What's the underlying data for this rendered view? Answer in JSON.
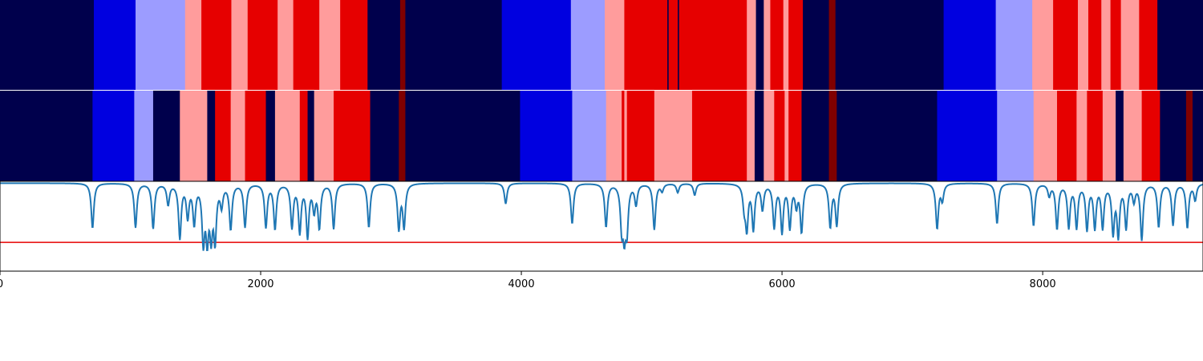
{
  "chart_data": {
    "type": "heatmap",
    "xlim": [
      0,
      9230
    ],
    "x_ticks": [
      0,
      2000,
      4000,
      6000,
      8000
    ],
    "x_tick_labels": [
      "0",
      "2000",
      "4000",
      "6000",
      "8000"
    ],
    "grid": false,
    "legend": "none",
    "colors": {
      "navy": "#00004c",
      "blue": "#0000e0",
      "lightblue": "#9c9cff",
      "pink": "#ff9c9c",
      "red": "#e60000",
      "darkred": "#800000",
      "line": "#1f77b4",
      "threshold": "#e60000"
    },
    "state_rows": [
      {
        "segments": [
          [
            0,
            720,
            "navy"
          ],
          [
            720,
            1040,
            "blue"
          ],
          [
            1040,
            1420,
            "lightblue"
          ],
          [
            1420,
            1545,
            "pink"
          ],
          [
            1545,
            1775,
            "red"
          ],
          [
            1775,
            1900,
            "pink"
          ],
          [
            1900,
            2130,
            "red"
          ],
          [
            2130,
            2250,
            "pink"
          ],
          [
            2250,
            2450,
            "red"
          ],
          [
            2450,
            2610,
            "pink"
          ],
          [
            2610,
            2820,
            "red"
          ],
          [
            2820,
            3070,
            "navy"
          ],
          [
            3070,
            3110,
            "darkred"
          ],
          [
            3110,
            3850,
            "navy"
          ],
          [
            3850,
            4380,
            "blue"
          ],
          [
            4380,
            4640,
            "lightblue"
          ],
          [
            4640,
            4790,
            "pink"
          ],
          [
            4790,
            5120,
            "red"
          ],
          [
            5120,
            5130,
            "navy"
          ],
          [
            5130,
            5200,
            "red"
          ],
          [
            5200,
            5210,
            "navy"
          ],
          [
            5210,
            5320,
            "red"
          ],
          [
            5320,
            5730,
            "red"
          ],
          [
            5730,
            5800,
            "pink"
          ],
          [
            5800,
            5860,
            "navy"
          ],
          [
            5860,
            5910,
            "pink"
          ],
          [
            5910,
            6010,
            "red"
          ],
          [
            6010,
            6050,
            "pink"
          ],
          [
            6050,
            6160,
            "red"
          ],
          [
            6160,
            6360,
            "navy"
          ],
          [
            6360,
            6410,
            "darkred"
          ],
          [
            6410,
            7240,
            "navy"
          ],
          [
            7240,
            7640,
            "blue"
          ],
          [
            7640,
            7920,
            "lightblue"
          ],
          [
            7920,
            8080,
            "pink"
          ],
          [
            8080,
            8270,
            "red"
          ],
          [
            8270,
            8350,
            "pink"
          ],
          [
            8350,
            8450,
            "red"
          ],
          [
            8450,
            8520,
            "pink"
          ],
          [
            8520,
            8600,
            "red"
          ],
          [
            8600,
            8740,
            "pink"
          ],
          [
            8740,
            8880,
            "red"
          ],
          [
            8880,
            9230,
            "navy"
          ]
        ]
      },
      {
        "segments": [
          [
            0,
            710,
            "navy"
          ],
          [
            710,
            1030,
            "blue"
          ],
          [
            1030,
            1175,
            "lightblue"
          ],
          [
            1175,
            1380,
            "navy"
          ],
          [
            1380,
            1590,
            "pink"
          ],
          [
            1590,
            1650,
            "navy"
          ],
          [
            1650,
            1770,
            "red"
          ],
          [
            1770,
            1880,
            "pink"
          ],
          [
            1880,
            2040,
            "red"
          ],
          [
            2040,
            2110,
            "navy"
          ],
          [
            2110,
            2300,
            "pink"
          ],
          [
            2300,
            2360,
            "red"
          ],
          [
            2360,
            2410,
            "navy"
          ],
          [
            2410,
            2560,
            "pink"
          ],
          [
            2560,
            2840,
            "red"
          ],
          [
            2840,
            3060,
            "navy"
          ],
          [
            3060,
            3110,
            "darkred"
          ],
          [
            3110,
            3990,
            "navy"
          ],
          [
            3990,
            4390,
            "blue"
          ],
          [
            4390,
            4650,
            "lightblue"
          ],
          [
            4650,
            4770,
            "pink"
          ],
          [
            4770,
            4790,
            "red"
          ],
          [
            4790,
            4810,
            "pink"
          ],
          [
            4810,
            5020,
            "red"
          ],
          [
            5020,
            5310,
            "pink"
          ],
          [
            5310,
            5730,
            "red"
          ],
          [
            5730,
            5790,
            "pink"
          ],
          [
            5790,
            5860,
            "navy"
          ],
          [
            5860,
            5940,
            "pink"
          ],
          [
            5940,
            6020,
            "red"
          ],
          [
            6020,
            6050,
            "pink"
          ],
          [
            6050,
            6150,
            "red"
          ],
          [
            6150,
            6360,
            "navy"
          ],
          [
            6360,
            6420,
            "darkred"
          ],
          [
            6420,
            7190,
            "navy"
          ],
          [
            7190,
            7650,
            "blue"
          ],
          [
            7650,
            7930,
            "lightblue"
          ],
          [
            7930,
            8110,
            "pink"
          ],
          [
            8110,
            8260,
            "red"
          ],
          [
            8260,
            8340,
            "pink"
          ],
          [
            8340,
            8460,
            "red"
          ],
          [
            8460,
            8560,
            "pink"
          ],
          [
            8560,
            8620,
            "navy"
          ],
          [
            8620,
            8760,
            "pink"
          ],
          [
            8760,
            8900,
            "red"
          ],
          [
            8900,
            9100,
            "navy"
          ],
          [
            9100,
            9150,
            "darkred"
          ],
          [
            9150,
            9230,
            "navy"
          ]
        ]
      }
    ],
    "signal": {
      "ylim": [
        0,
        1
      ],
      "baseline": 0.98,
      "threshold": 0.32,
      "dips": [
        [
          710,
          0.48
        ],
        [
          1040,
          0.49
        ],
        [
          1175,
          0.48
        ],
        [
          1290,
          0.75
        ],
        [
          1380,
          0.38
        ],
        [
          1440,
          0.62
        ],
        [
          1490,
          0.55
        ],
        [
          1560,
          0.36
        ],
        [
          1590,
          0.42
        ],
        [
          1620,
          0.45
        ],
        [
          1650,
          0.38
        ],
        [
          1700,
          0.75
        ],
        [
          1770,
          0.48
        ],
        [
          1880,
          0.5
        ],
        [
          2040,
          0.5
        ],
        [
          2110,
          0.48
        ],
        [
          2240,
          0.5
        ],
        [
          2300,
          0.45
        ],
        [
          2360,
          0.4
        ],
        [
          2410,
          0.7
        ],
        [
          2450,
          0.5
        ],
        [
          2560,
          0.48
        ],
        [
          2830,
          0.49
        ],
        [
          3060,
          0.48
        ],
        [
          3100,
          0.5
        ],
        [
          3880,
          0.75
        ],
        [
          4390,
          0.53
        ],
        [
          4650,
          0.5
        ],
        [
          4770,
          0.53
        ],
        [
          4790,
          0.5
        ],
        [
          4810,
          0.5
        ],
        [
          4880,
          0.75
        ],
        [
          5020,
          0.47
        ],
        [
          5080,
          0.9
        ],
        [
          5200,
          0.88
        ],
        [
          5330,
          0.85
        ],
        [
          5710,
          0.75
        ],
        [
          5730,
          0.5
        ],
        [
          5780,
          0.48
        ],
        [
          5850,
          0.7
        ],
        [
          5940,
          0.5
        ],
        [
          6000,
          0.45
        ],
        [
          6060,
          0.5
        ],
        [
          6110,
          0.75
        ],
        [
          6150,
          0.45
        ],
        [
          6370,
          0.5
        ],
        [
          6420,
          0.52
        ],
        [
          7190,
          0.48
        ],
        [
          7230,
          0.8
        ],
        [
          7650,
          0.53
        ],
        [
          7930,
          0.51
        ],
        [
          8050,
          0.85
        ],
        [
          8110,
          0.48
        ],
        [
          8200,
          0.5
        ],
        [
          8260,
          0.5
        ],
        [
          8340,
          0.48
        ],
        [
          8400,
          0.5
        ],
        [
          8460,
          0.5
        ],
        [
          8540,
          0.45
        ],
        [
          8580,
          0.42
        ],
        [
          8640,
          0.5
        ],
        [
          8700,
          0.8
        ],
        [
          8760,
          0.36
        ],
        [
          8890,
          0.5
        ],
        [
          9000,
          0.52
        ],
        [
          9110,
          0.49
        ],
        [
          9170,
          0.8
        ]
      ]
    }
  }
}
